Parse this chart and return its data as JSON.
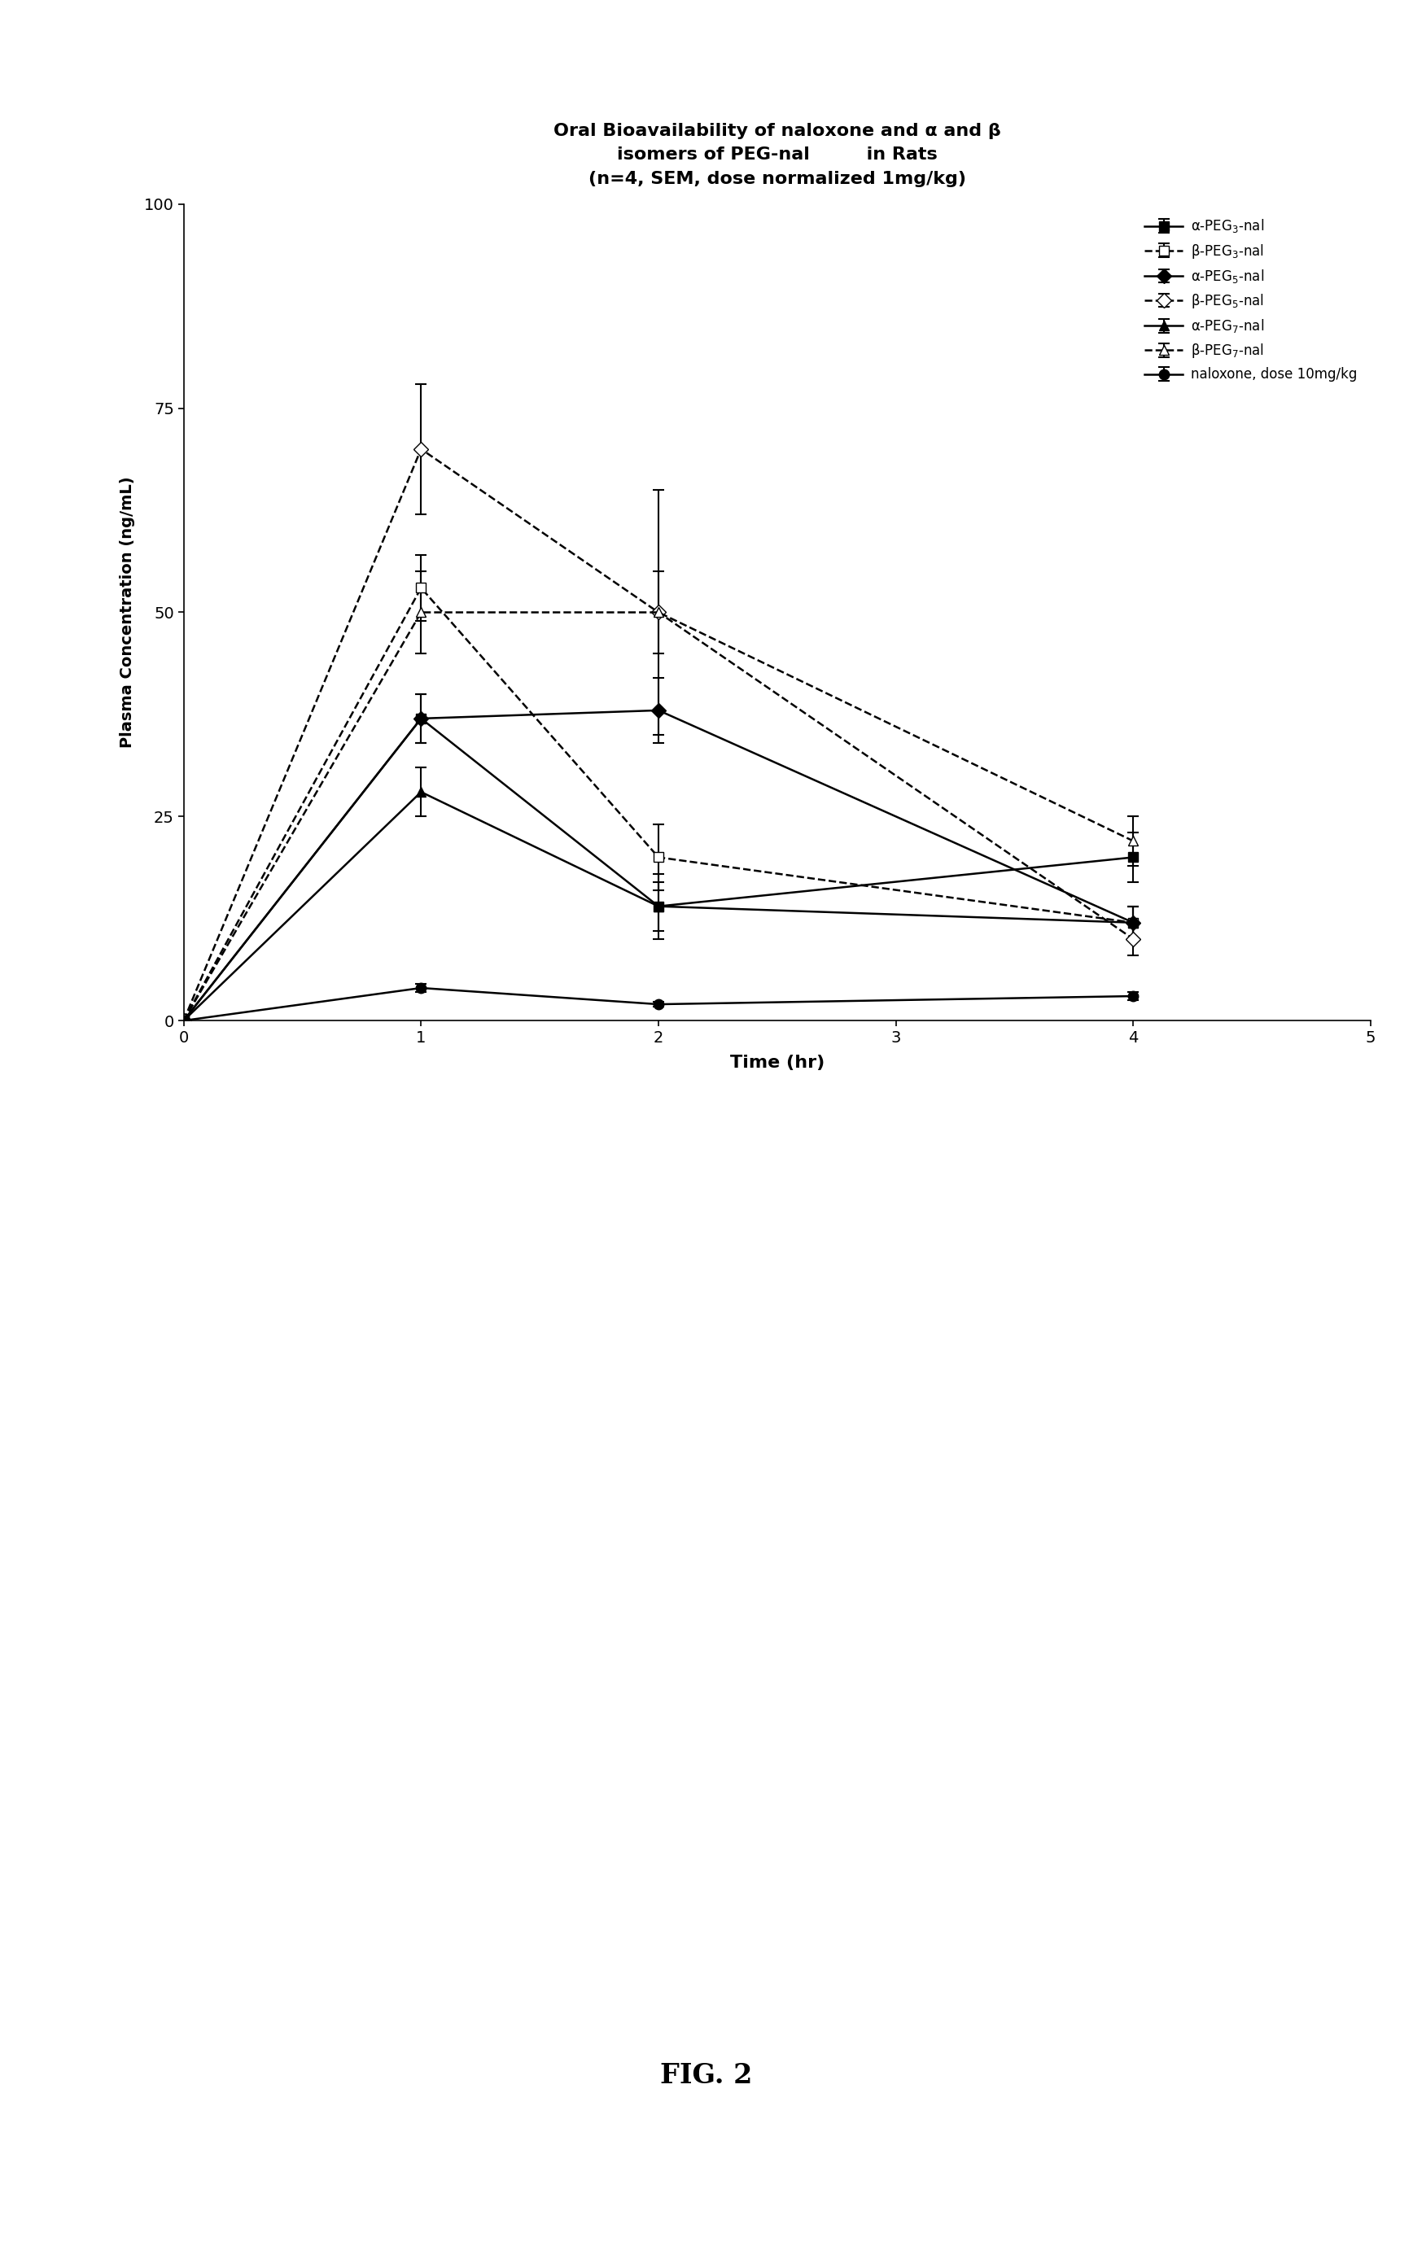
{
  "title_line1": "Oral Bioavailability of naloxone and α and β",
  "title_line2": "isomers of PEG-nal         in Rats",
  "title_line3": "(n=4, SEM, dose normalized 1mg/kg)",
  "xlabel": "Time (hr)",
  "ylabel": "Plasma Concentration (ng/mL)",
  "xlim": [
    0,
    5
  ],
  "ylim": [
    0,
    100
  ],
  "xticks": [
    0,
    1,
    2,
    3,
    4,
    5
  ],
  "yticks": [
    0,
    25,
    50,
    75,
    100
  ],
  "ytick_labels": [
    "0",
    "25",
    "50",
    "75",
    "100"
  ],
  "xtick_labels": [
    "0",
    "1",
    "2",
    "3",
    "4",
    "5"
  ],
  "time": [
    0,
    1,
    2,
    4
  ],
  "series": [
    {
      "label": "α-PEG$_3$-nal",
      "y": [
        0,
        37,
        14,
        20
      ],
      "yerr": [
        0,
        3,
        4,
        3
      ],
      "linestyle": "solid",
      "marker": "s",
      "fillstyle": "full",
      "color": "black"
    },
    {
      "label": "β-PEG$_3$-nal",
      "y": [
        0,
        53,
        20,
        12
      ],
      "yerr": [
        0,
        4,
        4,
        2
      ],
      "linestyle": "dashed",
      "marker": "s",
      "fillstyle": "none",
      "color": "black"
    },
    {
      "label": "α-PEG$_5$-nal",
      "y": [
        0,
        37,
        38,
        12
      ],
      "yerr": [
        0,
        3,
        4,
        2
      ],
      "linestyle": "solid",
      "marker": "D",
      "fillstyle": "full",
      "color": "black"
    },
    {
      "label": "β-PEG$_5$-nal",
      "y": [
        0,
        70,
        50,
        10
      ],
      "yerr": [
        0,
        8,
        15,
        2
      ],
      "linestyle": "dashed",
      "marker": "D",
      "fillstyle": "none",
      "color": "black"
    },
    {
      "label": "α-PEG$_7$-nal",
      "y": [
        0,
        28,
        14,
        12
      ],
      "yerr": [
        0,
        3,
        3,
        2
      ],
      "linestyle": "solid",
      "marker": "^",
      "fillstyle": "full",
      "color": "black"
    },
    {
      "label": "β-PEG$_7$-nal",
      "y": [
        0,
        50,
        50,
        22
      ],
      "yerr": [
        0,
        5,
        5,
        3
      ],
      "linestyle": "dashed",
      "marker": "^",
      "fillstyle": "none",
      "color": "black"
    },
    {
      "label": "naloxone, dose 10mg/kg",
      "y": [
        0,
        4,
        2,
        3
      ],
      "yerr": [
        0,
        0.5,
        0.3,
        0.5
      ],
      "linestyle": "solid",
      "marker": "o",
      "fillstyle": "full",
      "color": "black"
    }
  ],
  "fig_label": "FIG. 2",
  "background_color": "#ffffff"
}
